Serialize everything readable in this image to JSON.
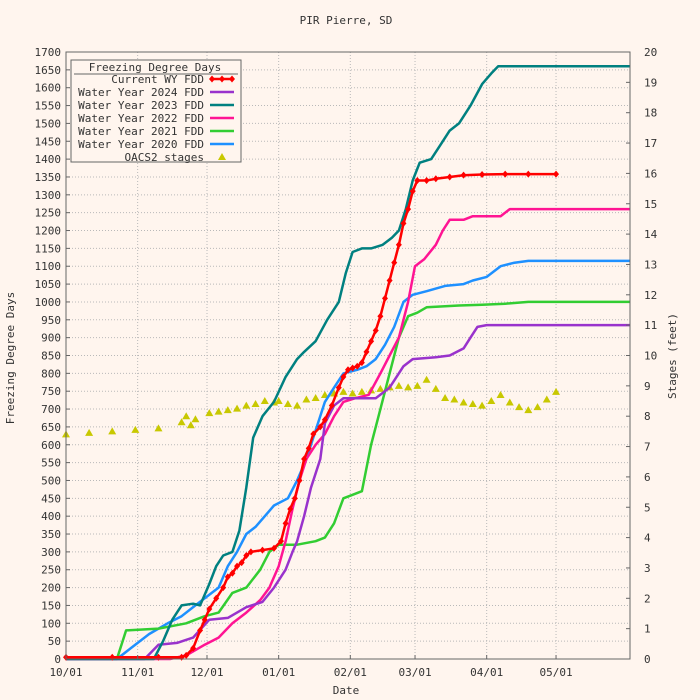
{
  "chart_data": {
    "type": "line",
    "title": "PIR Pierre, SD",
    "xlabel": "Date",
    "ylabel": "Freezing Degree Days",
    "y2label": "Stages (feet)",
    "xlim": [
      0,
      244
    ],
    "ylim": [
      0,
      1700
    ],
    "y2lim": [
      0,
      20
    ],
    "grid": true,
    "legend_placement": "top-left",
    "legend_title": "Freezing Degree Days",
    "x_ticks": [
      {
        "day": 0,
        "label": "10/01"
      },
      {
        "day": 31,
        "label": "11/01"
      },
      {
        "day": 61,
        "label": "12/01"
      },
      {
        "day": 92,
        "label": "01/01"
      },
      {
        "day": 123,
        "label": "02/01"
      },
      {
        "day": 151,
        "label": "03/01"
      },
      {
        "day": 182,
        "label": "04/01"
      },
      {
        "day": 212,
        "label": "05/01"
      }
    ],
    "y_ticks": [
      0,
      50,
      100,
      150,
      200,
      250,
      300,
      350,
      400,
      450,
      500,
      550,
      600,
      650,
      700,
      750,
      800,
      850,
      900,
      950,
      1000,
      1050,
      1100,
      1150,
      1200,
      1250,
      1300,
      1350,
      1400,
      1450,
      1500,
      1550,
      1600,
      1650,
      1700
    ],
    "y2_ticks": [
      0,
      1,
      2,
      3,
      4,
      5,
      6,
      7,
      8,
      9,
      10,
      11,
      12,
      13,
      14,
      15,
      16,
      17,
      18,
      19,
      20
    ],
    "series": [
      {
        "name": "Current WY FDD",
        "color": "#ff0000",
        "marker": "diamond",
        "axis": "left",
        "points": [
          [
            0,
            5
          ],
          [
            20,
            5
          ],
          [
            40,
            5
          ],
          [
            50,
            5
          ],
          [
            52,
            10
          ],
          [
            55,
            30
          ],
          [
            58,
            80
          ],
          [
            60,
            110
          ],
          [
            62,
            140
          ],
          [
            65,
            170
          ],
          [
            68,
            200
          ],
          [
            70,
            230
          ],
          [
            72,
            240
          ],
          [
            74,
            260
          ],
          [
            76,
            270
          ],
          [
            78,
            290
          ],
          [
            80,
            300
          ],
          [
            85,
            305
          ],
          [
            90,
            310
          ],
          [
            93,
            330
          ],
          [
            95,
            380
          ],
          [
            97,
            420
          ],
          [
            99,
            450
          ],
          [
            101,
            500
          ],
          [
            103,
            560
          ],
          [
            105,
            590
          ],
          [
            107,
            630
          ],
          [
            110,
            650
          ],
          [
            112,
            670
          ],
          [
            115,
            710
          ],
          [
            118,
            760
          ],
          [
            120,
            790
          ],
          [
            122,
            810
          ],
          [
            124,
            815
          ],
          [
            126,
            820
          ],
          [
            128,
            830
          ],
          [
            130,
            860
          ],
          [
            132,
            890
          ],
          [
            134,
            920
          ],
          [
            136,
            960
          ],
          [
            138,
            1010
          ],
          [
            140,
            1060
          ],
          [
            142,
            1110
          ],
          [
            144,
            1160
          ],
          [
            146,
            1220
          ],
          [
            148,
            1260
          ],
          [
            150,
            1310
          ],
          [
            152,
            1340
          ],
          [
            156,
            1340
          ],
          [
            160,
            1345
          ],
          [
            166,
            1350
          ],
          [
            172,
            1355
          ],
          [
            180,
            1357
          ],
          [
            190,
            1358
          ],
          [
            200,
            1358
          ],
          [
            212,
            1358
          ]
        ]
      },
      {
        "name": "Water Year 2024 FDD",
        "color": "#9932cc",
        "marker": "none",
        "axis": "left",
        "points": [
          [
            0,
            0
          ],
          [
            25,
            0
          ],
          [
            34,
            0
          ],
          [
            40,
            40
          ],
          [
            48,
            45
          ],
          [
            55,
            60
          ],
          [
            62,
            110
          ],
          [
            70,
            115
          ],
          [
            78,
            145
          ],
          [
            85,
            160
          ],
          [
            90,
            200
          ],
          [
            95,
            250
          ],
          [
            98,
            300
          ],
          [
            100,
            330
          ],
          [
            103,
            400
          ],
          [
            106,
            480
          ],
          [
            110,
            560
          ],
          [
            112,
            660
          ],
          [
            116,
            710
          ],
          [
            120,
            730
          ],
          [
            134,
            730
          ],
          [
            140,
            760
          ],
          [
            146,
            820
          ],
          [
            150,
            840
          ],
          [
            160,
            845
          ],
          [
            166,
            850
          ],
          [
            172,
            870
          ],
          [
            175,
            900
          ],
          [
            178,
            930
          ],
          [
            182,
            935
          ],
          [
            200,
            935
          ],
          [
            220,
            935
          ],
          [
            244,
            935
          ]
        ]
      },
      {
        "name": "Water Year 2023 FDD",
        "color": "#008080",
        "marker": "none",
        "axis": "left",
        "points": [
          [
            0,
            0
          ],
          [
            38,
            0
          ],
          [
            42,
            50
          ],
          [
            46,
            110
          ],
          [
            50,
            150
          ],
          [
            55,
            155
          ],
          [
            58,
            150
          ],
          [
            62,
            210
          ],
          [
            65,
            260
          ],
          [
            68,
            290
          ],
          [
            72,
            300
          ],
          [
            75,
            360
          ],
          [
            78,
            480
          ],
          [
            81,
            620
          ],
          [
            85,
            680
          ],
          [
            90,
            720
          ],
          [
            95,
            790
          ],
          [
            100,
            840
          ],
          [
            103,
            860
          ],
          [
            108,
            890
          ],
          [
            113,
            950
          ],
          [
            118,
            1000
          ],
          [
            121,
            1080
          ],
          [
            124,
            1140
          ],
          [
            128,
            1150
          ],
          [
            132,
            1150
          ],
          [
            137,
            1160
          ],
          [
            141,
            1180
          ],
          [
            144,
            1200
          ],
          [
            147,
            1260
          ],
          [
            150,
            1340
          ],
          [
            153,
            1390
          ],
          [
            158,
            1400
          ],
          [
            162,
            1440
          ],
          [
            166,
            1480
          ],
          [
            170,
            1500
          ],
          [
            175,
            1550
          ],
          [
            180,
            1610
          ],
          [
            184,
            1640
          ],
          [
            187,
            1660
          ],
          [
            200,
            1660
          ],
          [
            220,
            1660
          ],
          [
            244,
            1660
          ]
        ]
      },
      {
        "name": "Water Year 2022 FDD",
        "color": "#ff1493",
        "marker": "none",
        "axis": "left",
        "points": [
          [
            0,
            0
          ],
          [
            45,
            0
          ],
          [
            52,
            10
          ],
          [
            60,
            40
          ],
          [
            66,
            60
          ],
          [
            72,
            100
          ],
          [
            78,
            130
          ],
          [
            84,
            165
          ],
          [
            88,
            200
          ],
          [
            92,
            260
          ],
          [
            95,
            330
          ],
          [
            98,
            420
          ],
          [
            101,
            500
          ],
          [
            104,
            560
          ],
          [
            108,
            600
          ],
          [
            112,
            630
          ],
          [
            116,
            680
          ],
          [
            120,
            720
          ],
          [
            125,
            730
          ],
          [
            131,
            740
          ],
          [
            136,
            800
          ],
          [
            140,
            850
          ],
          [
            144,
            900
          ],
          [
            148,
            1000
          ],
          [
            151,
            1100
          ],
          [
            155,
            1120
          ],
          [
            160,
            1160
          ],
          [
            163,
            1200
          ],
          [
            166,
            1230
          ],
          [
            172,
            1230
          ],
          [
            176,
            1240
          ],
          [
            182,
            1240
          ],
          [
            188,
            1240
          ],
          [
            192,
            1260
          ],
          [
            200,
            1260
          ],
          [
            220,
            1260
          ],
          [
            244,
            1260
          ]
        ]
      },
      {
        "name": "Water Year 2021 FDD",
        "color": "#32cd32",
        "marker": "none",
        "axis": "left",
        "points": [
          [
            0,
            0
          ],
          [
            22,
            0
          ],
          [
            26,
            80
          ],
          [
            40,
            85
          ],
          [
            52,
            100
          ],
          [
            60,
            120
          ],
          [
            66,
            130
          ],
          [
            72,
            185
          ],
          [
            78,
            200
          ],
          [
            84,
            250
          ],
          [
            88,
            300
          ],
          [
            92,
            320
          ],
          [
            100,
            320
          ],
          [
            108,
            330
          ],
          [
            112,
            340
          ],
          [
            116,
            380
          ],
          [
            120,
            450
          ],
          [
            124,
            460
          ],
          [
            128,
            470
          ],
          [
            132,
            600
          ],
          [
            136,
            700
          ],
          [
            140,
            800
          ],
          [
            144,
            900
          ],
          [
            148,
            960
          ],
          [
            152,
            970
          ],
          [
            156,
            985
          ],
          [
            170,
            990
          ],
          [
            180,
            992
          ],
          [
            190,
            995
          ],
          [
            200,
            1000
          ],
          [
            220,
            1000
          ],
          [
            244,
            1000
          ]
        ]
      },
      {
        "name": "Water Year 2020 FDD",
        "color": "#1e90ff",
        "marker": "none",
        "axis": "left",
        "points": [
          [
            0,
            0
          ],
          [
            22,
            0
          ],
          [
            28,
            30
          ],
          [
            36,
            70
          ],
          [
            44,
            100
          ],
          [
            50,
            120
          ],
          [
            56,
            150
          ],
          [
            60,
            170
          ],
          [
            66,
            200
          ],
          [
            70,
            260
          ],
          [
            74,
            300
          ],
          [
            78,
            350
          ],
          [
            82,
            370
          ],
          [
            86,
            400
          ],
          [
            90,
            430
          ],
          [
            96,
            450
          ],
          [
            100,
            500
          ],
          [
            104,
            560
          ],
          [
            108,
            640
          ],
          [
            112,
            720
          ],
          [
            116,
            760
          ],
          [
            120,
            800
          ],
          [
            126,
            810
          ],
          [
            130,
            820
          ],
          [
            134,
            840
          ],
          [
            138,
            880
          ],
          [
            142,
            930
          ],
          [
            146,
            1000
          ],
          [
            150,
            1020
          ],
          [
            156,
            1030
          ],
          [
            164,
            1045
          ],
          [
            172,
            1050
          ],
          [
            176,
            1060
          ],
          [
            182,
            1070
          ],
          [
            188,
            1100
          ],
          [
            194,
            1110
          ],
          [
            200,
            1115
          ],
          [
            220,
            1115
          ],
          [
            244,
            1115
          ]
        ]
      },
      {
        "name": "OACS2 stages",
        "color": "#c8c800",
        "marker": "triangle",
        "axis": "right",
        "points": [
          [
            0,
            7.4
          ],
          [
            10,
            7.45
          ],
          [
            20,
            7.5
          ],
          [
            30,
            7.55
          ],
          [
            40,
            7.6
          ],
          [
            50,
            7.8
          ],
          [
            52,
            8.0
          ],
          [
            54,
            7.7
          ],
          [
            56,
            7.9
          ],
          [
            62,
            8.1
          ],
          [
            66,
            8.15
          ],
          [
            70,
            8.2
          ],
          [
            74,
            8.25
          ],
          [
            78,
            8.35
          ],
          [
            82,
            8.4
          ],
          [
            86,
            8.5
          ],
          [
            90,
            8.45
          ],
          [
            92,
            8.5
          ],
          [
            96,
            8.4
          ],
          [
            100,
            8.35
          ],
          [
            104,
            8.55
          ],
          [
            108,
            8.6
          ],
          [
            112,
            8.7
          ],
          [
            116,
            8.75
          ],
          [
            120,
            8.8
          ],
          [
            124,
            8.75
          ],
          [
            128,
            8.8
          ],
          [
            132,
            8.85
          ],
          [
            136,
            8.9
          ],
          [
            140,
            8.95
          ],
          [
            144,
            9.0
          ],
          [
            148,
            8.95
          ],
          [
            152,
            9.0
          ],
          [
            156,
            9.2
          ],
          [
            160,
            8.9
          ],
          [
            164,
            8.6
          ],
          [
            168,
            8.55
          ],
          [
            172,
            8.45
          ],
          [
            176,
            8.4
          ],
          [
            180,
            8.35
          ],
          [
            184,
            8.5
          ],
          [
            188,
            8.7
          ],
          [
            192,
            8.45
          ],
          [
            196,
            8.3
          ],
          [
            200,
            8.2
          ],
          [
            204,
            8.3
          ],
          [
            208,
            8.55
          ],
          [
            212,
            8.8
          ]
        ]
      }
    ]
  }
}
